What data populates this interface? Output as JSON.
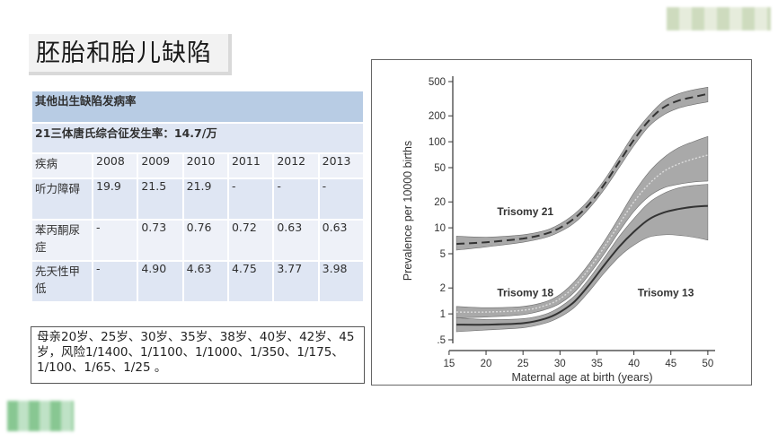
{
  "slide": {
    "title": "胚胎和胎儿缺陷"
  },
  "table": {
    "title": "其他出生缺陷发病率",
    "subtitle": "21三体唐氏综合征发生率：14.7/万",
    "headers": [
      "疾病",
      "2008",
      "2009",
      "2010",
      "2011",
      "2012",
      "2013"
    ],
    "rows": [
      [
        "听力障碍",
        "19.9",
        "21.5",
        "21.9",
        "-",
        "-",
        "-"
      ],
      [
        "苯丙酮尿症",
        "-",
        "0.73",
        "0.76",
        "0.72",
        "0.63",
        "0.63"
      ],
      [
        "先天性甲低",
        "-",
        "4.90",
        "4.63",
        "4.75",
        "3.77",
        "3.98"
      ]
    ]
  },
  "note": {
    "text": "母亲20岁、25岁、30岁、35岁、38岁、40岁、42岁、45岁，风险1/1400、1/1100、1/1000、1/350、1/175、1/100、1/65、1/25 。"
  },
  "colors": {
    "band": "#8c8c8c",
    "line": "#333333",
    "title_bg": "#b8cce4",
    "row_dark": "#dfe6f3",
    "row_light": "#eef1f8"
  },
  "chart_data": {
    "type": "line",
    "xlabel": "Maternal age at birth (years)",
    "ylabel": "Prevalence per 10000 births",
    "xlim": [
      16,
      50
    ],
    "ylim": [
      0.5,
      500
    ],
    "yscale": "log",
    "xticks": [
      15,
      20,
      25,
      30,
      35,
      40,
      45,
      50
    ],
    "yticks": [
      {
        "v": 0.5,
        "label": ".5"
      },
      {
        "v": 1,
        "label": "1"
      },
      {
        "v": 2,
        "label": "2"
      },
      {
        "v": 5,
        "label": "5"
      },
      {
        "v": 10,
        "label": "10"
      },
      {
        "v": 20,
        "label": "20"
      },
      {
        "v": 50,
        "label": "50"
      },
      {
        "v": 100,
        "label": "100"
      },
      {
        "v": 200,
        "label": "200"
      },
      {
        "v": 500,
        "label": "500"
      }
    ],
    "grid": false,
    "series": [
      {
        "name": "Trisomy 21",
        "style": "dashed",
        "label_at": {
          "x": 21.5,
          "y": 14
        },
        "x": [
          16,
          20,
          25,
          28,
          30,
          32,
          34,
          36,
          38,
          40,
          42,
          44,
          46,
          48,
          50
        ],
        "y": [
          6.5,
          6.8,
          7.5,
          8.5,
          10,
          13,
          19,
          32,
          58,
          105,
          175,
          250,
          300,
          330,
          360
        ],
        "lower": [
          5.5,
          6.0,
          6.8,
          7.7,
          9.0,
          11.5,
          17,
          28,
          50,
          90,
          150,
          205,
          245,
          270,
          290
        ],
        "upper": [
          8.0,
          7.8,
          8.3,
          9.3,
          11.1,
          14.6,
          21.5,
          36,
          66,
          122,
          200,
          295,
          360,
          400,
          430
        ]
      },
      {
        "name": "Trisomy 18",
        "style": "dotted",
        "label_at": {
          "x": 21.5,
          "y": 1.6
        },
        "x": [
          16,
          20,
          25,
          28,
          30,
          32,
          34,
          36,
          38,
          40,
          42,
          44,
          46,
          48,
          50
        ],
        "y": [
          1.05,
          1.05,
          1.1,
          1.25,
          1.5,
          2.1,
          3.4,
          6,
          11,
          20,
          32,
          45,
          55,
          63,
          70
        ],
        "lower": [
          0.9,
          0.92,
          0.98,
          1.12,
          1.32,
          1.8,
          2.9,
          5,
          9,
          15.5,
          23,
          29,
          32,
          34,
          35
        ],
        "upper": [
          1.22,
          1.18,
          1.22,
          1.38,
          1.68,
          2.4,
          3.9,
          7,
          13.2,
          25.5,
          44,
          65,
          85,
          100,
          115
        ]
      },
      {
        "name": "Trisomy 13",
        "style": "solid",
        "label_at": {
          "x": 40.5,
          "y": 1.6
        },
        "x": [
          16,
          20,
          25,
          28,
          30,
          32,
          34,
          36,
          38,
          40,
          42,
          44,
          46,
          48,
          50
        ],
        "y": [
          0.75,
          0.75,
          0.78,
          0.88,
          1.05,
          1.4,
          2.2,
          3.7,
          6,
          9,
          12.5,
          15,
          16.5,
          17.5,
          18
        ],
        "lower": [
          0.62,
          0.65,
          0.69,
          0.78,
          0.92,
          1.2,
          1.85,
          3.0,
          4.6,
          6.3,
          7.8,
          8.3,
          8.2,
          7.8,
          7.2
        ],
        "upper": [
          0.9,
          0.86,
          0.88,
          0.99,
          1.2,
          1.63,
          2.6,
          4.5,
          7.9,
          12.8,
          19.5,
          25,
          29,
          31,
          32
        ]
      }
    ]
  }
}
